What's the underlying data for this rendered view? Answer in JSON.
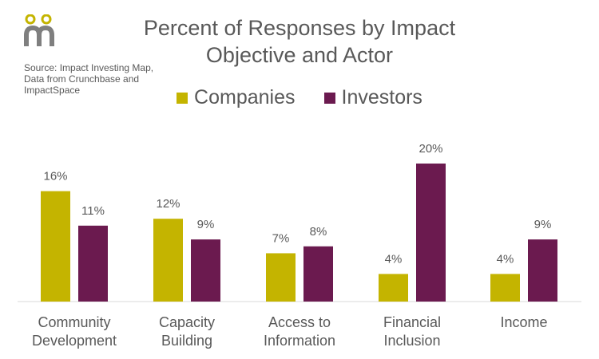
{
  "brand": {
    "logo_name": "impact-investing-map-logo",
    "accent": "#c4b400"
  },
  "source_note": "Source: Impact Investing Map, Data from Crunchbase and ImpactSpace",
  "chart_data": {
    "type": "bar",
    "title": "Percent of Responses by Impact Objective and Actor",
    "title_lines": [
      "Percent of Responses by Impact",
      "Objective and Actor"
    ],
    "categories": [
      [
        "Community",
        "Development"
      ],
      [
        "Capacity",
        "Building"
      ],
      [
        "Access to",
        "Information"
      ],
      [
        "Financial",
        "Inclusion"
      ],
      [
        "Income"
      ]
    ],
    "series": [
      {
        "name": "Companies",
        "color": "#c4b400",
        "values": [
          16,
          12,
          7,
          4,
          4
        ],
        "labels": [
          "16%",
          "12%",
          "7%",
          "4%",
          "4%"
        ]
      },
      {
        "name": "Investors",
        "color": "#6b1a4f",
        "values": [
          11,
          9,
          8,
          20,
          9
        ],
        "labels": [
          "11%",
          "9%",
          "8%",
          "20%",
          "9%"
        ]
      }
    ],
    "unit": "%",
    "ylim": [
      0,
      22
    ],
    "grid": false,
    "xlabel": "",
    "ylabel": "",
    "legend_position": "top-center"
  }
}
